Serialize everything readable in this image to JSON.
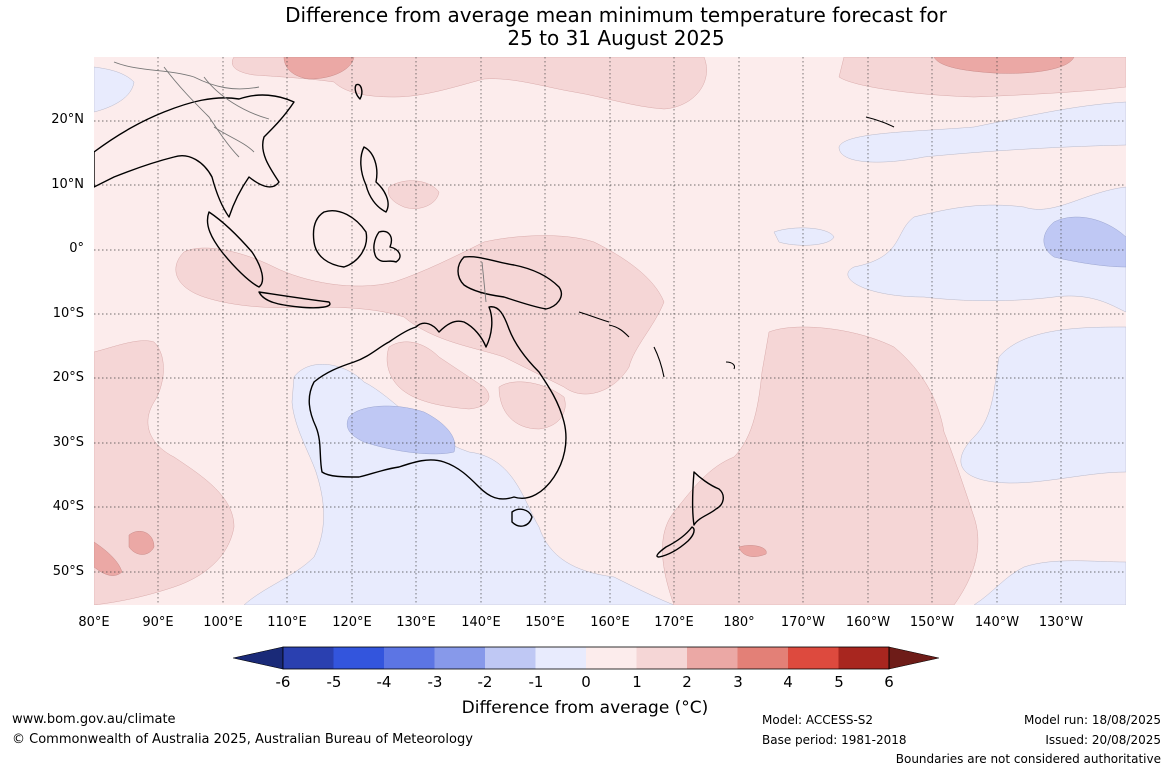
{
  "title": {
    "line1": "Difference from average mean minimum temperature forecast for",
    "line2": "25 to 31 August 2025"
  },
  "map": {
    "lat_labels": [
      "20°N",
      "10°N",
      "0°",
      "10°S",
      "20°S",
      "30°S",
      "40°S",
      "50°S"
    ],
    "lon_labels": [
      "80°E",
      "90°E",
      "100°E",
      "110°E",
      "120°E",
      "130°E",
      "140°E",
      "150°E",
      "160°E",
      "170°E",
      "180°",
      "170°W",
      "160°W",
      "150°W",
      "140°W",
      "130°W"
    ],
    "colors": {
      "neg_6": "#1a2a78",
      "neg_5": "#2a40b0",
      "neg_4": "#3355dd",
      "neg_3": "#5c75e4",
      "neg_2": "#8799ea",
      "neg_1": "#bfc8f4",
      "zero_neg": "#e8ebfd",
      "zero_pos": "#fcecec",
      "pos_1": "#f5d6d6",
      "pos_2": "#eba8a5",
      "pos_3": "#e38077",
      "pos_4": "#dd4a3e",
      "pos_5": "#a8261f",
      "pos_6": "#6e1c18"
    }
  },
  "colorbar": {
    "ticks": [
      "-6",
      "-5",
      "-4",
      "-3",
      "-2",
      "-1",
      "0",
      "1",
      "2",
      "3",
      "4",
      "5",
      "6"
    ],
    "label": "Difference from average (°C)"
  },
  "footer": {
    "website": "www.bom.gov.au/climate",
    "copyright": "© Commonwealth of Australia 2025, Australian Bureau of Meteorology",
    "model": "Model: ACCESS-S2",
    "base_period": "Base period: 1981-2018",
    "model_run": "Model run: 18/08/2025",
    "issued": "Issued: 20/08/2025",
    "disclaimer": "Boundaries are not considered authoritative"
  }
}
